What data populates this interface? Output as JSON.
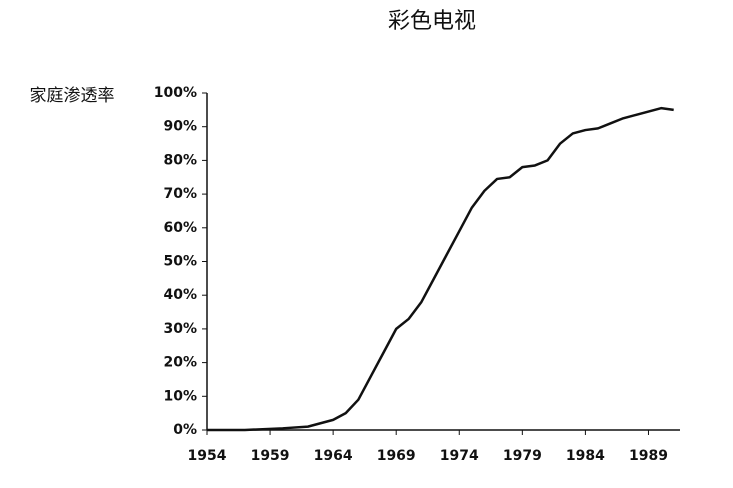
{
  "chart_data": {
    "type": "line",
    "title": "彩色电视",
    "y_label": "家庭渗透率",
    "x": [
      1954,
      1957,
      1960,
      1962,
      1963,
      1964,
      1965,
      1966,
      1967,
      1968,
      1969,
      1970,
      1971,
      1972,
      1973,
      1974,
      1975,
      1976,
      1977,
      1978,
      1979,
      1980,
      1981,
      1982,
      1983,
      1984,
      1985,
      1986,
      1987,
      1988,
      1989,
      1990,
      1991
    ],
    "series": [
      {
        "color": "#111111",
        "values": [
          0,
          0,
          0.5,
          1,
          2,
          3,
          5,
          9,
          16,
          23,
          30,
          33,
          38,
          45,
          52,
          59,
          66,
          71,
          74.5,
          75,
          78,
          78.5,
          80,
          85,
          88,
          89,
          89.5,
          91,
          92.5,
          93.5,
          94.5,
          95.5,
          95
        ]
      }
    ],
    "xlim": [
      1954,
      1991.5
    ],
    "xticks": [
      1954,
      1959,
      1964,
      1969,
      1974,
      1979,
      1984,
      1989
    ],
    "ylim": [
      0,
      100
    ],
    "yticks": [
      {
        "value": 0,
        "label": "0%"
      },
      {
        "value": 10,
        "label": "10%"
      },
      {
        "value": 20,
        "label": "20%"
      },
      {
        "value": 30,
        "label": "30%"
      },
      {
        "value": 40,
        "label": "40%"
      },
      {
        "value": 50,
        "label": "50%"
      },
      {
        "value": 60,
        "label": "60%"
      },
      {
        "value": 70,
        "label": "70%"
      },
      {
        "value": 80,
        "label": "80%"
      },
      {
        "value": 90,
        "label": "90%"
      },
      {
        "value": 100,
        "label": "100%"
      }
    ]
  }
}
